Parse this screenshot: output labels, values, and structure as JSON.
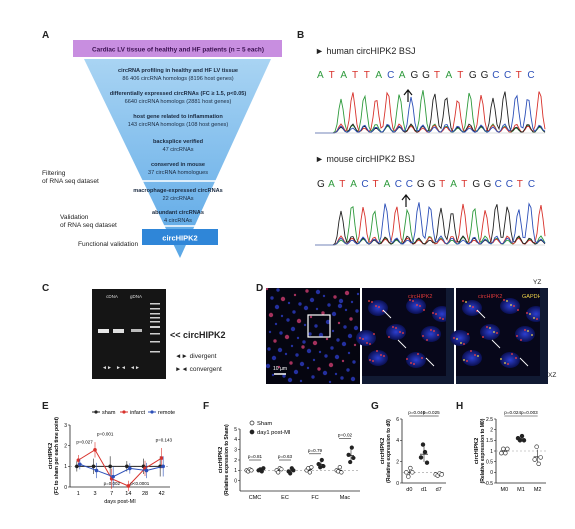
{
  "panel_labels": [
    "A",
    "B",
    "C",
    "D",
    "E",
    "F",
    "G",
    "H"
  ],
  "panelA": {
    "top": "Cardiac LV tissue of healthy and HF patients (n = 5 each)",
    "steps": [
      {
        "title": "circRNA profiling in healthy and HF LV tissue",
        "sub": "86 406 circRNA homologs (8196 host genes)"
      },
      {
        "title": "differentially expressed circRNAs (FC ≥ 1.5, p<0.05)",
        "sub": "6640 circRNA homologs (2881 host genes)"
      },
      {
        "title": "host gene related to inflammation",
        "sub": "143 circRNA homologs (108 host genes)"
      },
      {
        "title": "backsplice verified",
        "sub": "47 circRNAs"
      },
      {
        "title": "conserved in mouse",
        "sub": "37 circRNA homologues"
      },
      {
        "title": "macrophage-expressed circRNAs",
        "sub": "22 circRNAs"
      },
      {
        "title": "abundant circRNAs",
        "sub": "4 circRNAs"
      }
    ],
    "final": "circHIPK2",
    "side": {
      "filtering": [
        "Filtering",
        "of RNA seq dataset"
      ],
      "validation": [
        "Validation",
        "of RNA seq dataset"
      ],
      "functional": "Functional validation"
    }
  },
  "panelB": {
    "human_title": "► human circHIPK2 BSJ",
    "human_seq": [
      "A",
      "T",
      "A",
      "T",
      "T",
      "A",
      "C",
      "A",
      "G",
      "G",
      "T",
      "A",
      "T",
      "G",
      "G",
      "C",
      "C",
      "T",
      "C"
    ],
    "mouse_title": "► mouse circHIPK2 BSJ",
    "mouse_seq": [
      "G",
      "A",
      "T",
      "A",
      "C",
      "T",
      "A",
      "C",
      "C",
      "G",
      "G",
      "T",
      "A",
      "T",
      "G",
      "G",
      "C",
      "C",
      "T",
      "C"
    ],
    "base_colors": {
      "A": "#2e9a3c",
      "T": "#d8322c",
      "G": "#222222",
      "C": "#2c4fb8"
    }
  },
  "panelC": {
    "lane_labels": [
      "cDNA",
      "gDNA"
    ],
    "arrow": "<< circHIPK2",
    "legend": [
      "◄► divergent",
      "►◄ convergent"
    ]
  },
  "panelD": {
    "scale": "10 µm",
    "yz": "YZ",
    "xz": "XZ",
    "label_mid": "circHIPK2",
    "label_right_1": "circHIPK2",
    "label_right_2": "GAPDH"
  },
  "chart_data": [
    {
      "panel": "E",
      "type": "line",
      "ylabel": [
        "circHIPK2",
        "(FC to sham per each time point)"
      ],
      "xlabel": "days post-MI",
      "categories": [
        "1",
        "3",
        "7",
        "14",
        "28",
        "42"
      ],
      "ylim": [
        0,
        3
      ],
      "yticks": [
        0,
        1,
        2,
        3
      ],
      "series": [
        {
          "name": "sham",
          "color": "#222222",
          "values": [
            1.0,
            1.0,
            1.0,
            1.0,
            1.0,
            1.0
          ]
        },
        {
          "name": "infarct",
          "color": "#d8322c",
          "values": [
            1.3,
            1.8,
            0.4,
            0.05,
            0.9,
            1.4
          ]
        },
        {
          "name": "remote",
          "color": "#2c4fb8",
          "values": [
            1.1,
            0.8,
            0.5,
            0.9,
            0.8,
            1.0
          ]
        }
      ],
      "annotations": [
        "p=0.027",
        "p=0.001",
        "p=0.002",
        "p<0.0001",
        "p=0.143"
      ]
    },
    {
      "panel": "F",
      "type": "scatter",
      "ylabel": [
        "circHIPK2",
        "(Relative expression to Sham)"
      ],
      "categories": [
        "CMC",
        "EC",
        "FC",
        "Mac"
      ],
      "ylim": [
        -1,
        5
      ],
      "yticks": [
        0,
        1,
        2,
        3,
        4,
        5
      ],
      "series": [
        {
          "name": "Sham",
          "marker": "open",
          "values": [
            [
              1.0,
              0.9,
              1.1,
              1.0
            ],
            [
              1.0,
              0.8,
              1.2,
              1.1
            ],
            [
              1.0,
              1.2,
              0.8,
              1.3
            ],
            [
              1.0,
              0.9,
              1.3,
              0.8
            ]
          ]
        },
        {
          "name": "day1 post-MI",
          "marker": "filled",
          "values": [
            [
              1.0,
              1.1,
              0.9,
              1.2
            ],
            [
              0.9,
              0.7,
              1.2,
              1.0
            ],
            [
              1.6,
              1.3,
              2.0,
              1.4
            ],
            [
              2.5,
              1.8,
              3.2,
              2.2
            ]
          ]
        }
      ],
      "annotations": [
        "p=0.81",
        "p=0.63",
        "p=0.79",
        "p=0.02"
      ]
    },
    {
      "panel": "G",
      "type": "scatter",
      "ylabel": [
        "circHIPK2",
        "(Relative expression to d0)"
      ],
      "categories": [
        "d0",
        "d1",
        "d7"
      ],
      "ylim": [
        0,
        6
      ],
      "yticks": [
        0,
        2,
        4,
        6
      ],
      "values": [
        [
          1.0,
          0.6,
          1.4,
          1.0
        ],
        [
          2.4,
          3.6,
          2.9,
          1.9
        ],
        [
          0.8,
          0.7,
          0.9,
          0.8
        ]
      ],
      "annotations": [
        "p=0.046",
        "p=0.025"
      ]
    },
    {
      "panel": "H",
      "type": "scatter",
      "ylabel": [
        "circHIPK2",
        "(Relative expression to M0)"
      ],
      "categories": [
        "M0",
        "M1",
        "M2"
      ],
      "ylim": [
        -0.5,
        2.5
      ],
      "yticks": [
        -0.5,
        0,
        0.5,
        1.0,
        1.5,
        2.0,
        2.5
      ],
      "values": [
        [
          0.9,
          1.1,
          0.9,
          1.1
        ],
        [
          1.6,
          1.5,
          1.7,
          1.5
        ],
        [
          0.6,
          1.2,
          0.4,
          0.7
        ]
      ],
      "annotations": [
        "p=0.024",
        "p=0.003"
      ]
    }
  ]
}
